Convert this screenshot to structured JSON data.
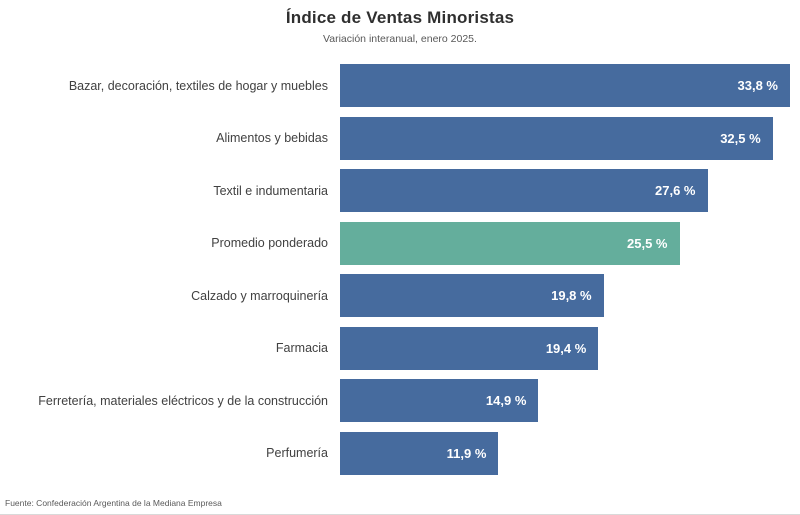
{
  "header": {
    "title": "Índice de Ventas Minoristas",
    "subtitle": "Variación interanual, enero 2025."
  },
  "footer": {
    "source": "Fuente: Confederación Argentina de la Mediana Empresa"
  },
  "colors": {
    "bar_default": "#466B9E",
    "bar_highlight": "#64AE9C",
    "value_text": "#FFFFFF",
    "category_text": "#414141"
  },
  "chart_data": {
    "type": "bar",
    "orientation": "horizontal",
    "title": "Índice de Ventas Minoristas",
    "subtitle": "Variación interanual, enero 2025.",
    "xlabel": "",
    "ylabel": "",
    "xlim": [
      0,
      34.5
    ],
    "grid": false,
    "legend": false,
    "value_label_position": "inside-end",
    "categories": [
      "Bazar, decoración, textiles de hogar y muebles",
      "Alimentos y bebidas",
      "Textil e indumentaria",
      "Promedio ponderado",
      "Calzado y marroquinería",
      "Farmacia",
      "Ferretería, materiales eléctricos y de la construcción",
      "Perfumería"
    ],
    "values": [
      33.8,
      32.5,
      27.6,
      25.5,
      19.8,
      19.4,
      14.9,
      11.9
    ],
    "value_labels": [
      "33,8 %",
      "32,5 %",
      "27,6 %",
      "25,5 %",
      "19,8 %",
      "19,4 %",
      "14,9 %",
      "11,9 %"
    ],
    "highlight_index": 3,
    "highlight_category": "Promedio ponderado"
  }
}
